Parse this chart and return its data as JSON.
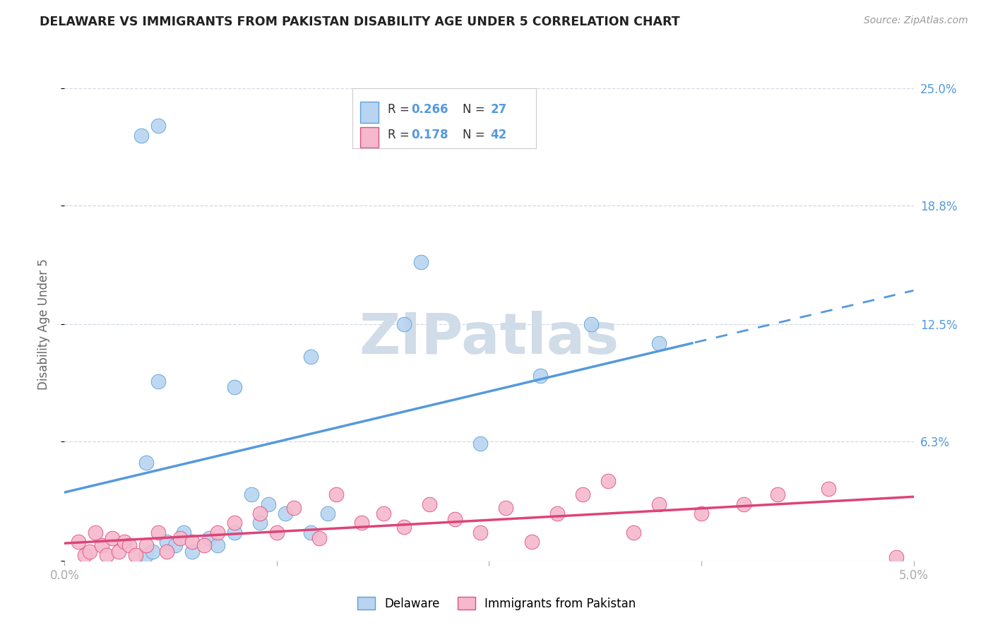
{
  "title": "DELAWARE VS IMMIGRANTS FROM PAKISTAN DISABILITY AGE UNDER 5 CORRELATION CHART",
  "source": "Source: ZipAtlas.com",
  "ylabel": "Disability Age Under 5",
  "xlim": [
    0.0,
    0.05
  ],
  "ylim": [
    0.0,
    25.0
  ],
  "yticks": [
    0.0,
    6.3,
    12.5,
    18.8,
    25.0
  ],
  "ytick_labels": [
    "",
    "6.3%",
    "12.5%",
    "18.8%",
    "25.0%"
  ],
  "xtick_vals": [
    0.0,
    0.0125,
    0.025,
    0.0375,
    0.05
  ],
  "xtick_labels": [
    "0.0%",
    "",
    "",
    "",
    "5.0%"
  ],
  "legend_r1": "0.266",
  "legend_n1": "27",
  "legend_r2": "0.178",
  "legend_n2": "42",
  "delaware_fill": "#b8d4f0",
  "delaware_edge": "#5aa0d8",
  "pakistan_fill": "#f5b8cc",
  "pakistan_edge": "#e05080",
  "line_del_color": "#5599dd",
  "line_pak_color": "#dd4477",
  "grid_color": "#d0d8e8",
  "watermark_color": "#d0dce8",
  "background": "#ffffff",
  "watermark": "ZIPatlas",
  "delaware_x": [
    0.0048,
    0.0052,
    0.006,
    0.0065,
    0.007,
    0.0075,
    0.0085,
    0.009,
    0.01,
    0.011,
    0.0115,
    0.012,
    0.013,
    0.0145,
    0.0155,
    0.0048,
    0.0055,
    0.01,
    0.0145,
    0.02,
    0.021,
    0.0245,
    0.028,
    0.031,
    0.035,
    0.0045,
    0.0055
  ],
  "delaware_y": [
    0.3,
    0.5,
    1.0,
    0.8,
    1.5,
    0.5,
    1.2,
    0.8,
    1.5,
    3.5,
    2.0,
    3.0,
    2.5,
    1.5,
    2.5,
    5.2,
    9.5,
    9.2,
    10.8,
    12.5,
    15.8,
    6.2,
    9.8,
    12.5,
    11.5,
    22.5,
    23.0
  ],
  "pakistan_x": [
    0.0008,
    0.0012,
    0.0015,
    0.0018,
    0.0022,
    0.0025,
    0.0028,
    0.0032,
    0.0035,
    0.0038,
    0.0042,
    0.0048,
    0.0055,
    0.006,
    0.0068,
    0.0075,
    0.0082,
    0.009,
    0.01,
    0.0115,
    0.0125,
    0.0135,
    0.015,
    0.016,
    0.0175,
    0.0188,
    0.02,
    0.0215,
    0.023,
    0.0245,
    0.026,
    0.0275,
    0.029,
    0.0305,
    0.032,
    0.0335,
    0.035,
    0.0375,
    0.04,
    0.042,
    0.045,
    0.049
  ],
  "pakistan_y": [
    1.0,
    0.3,
    0.5,
    1.5,
    0.8,
    0.3,
    1.2,
    0.5,
    1.0,
    0.8,
    0.3,
    0.8,
    1.5,
    0.5,
    1.2,
    1.0,
    0.8,
    1.5,
    2.0,
    2.5,
    1.5,
    2.8,
    1.2,
    3.5,
    2.0,
    2.5,
    1.8,
    3.0,
    2.2,
    1.5,
    2.8,
    1.0,
    2.5,
    3.5,
    4.2,
    1.5,
    3.0,
    2.5,
    3.0,
    3.5,
    3.8,
    0.2
  ]
}
